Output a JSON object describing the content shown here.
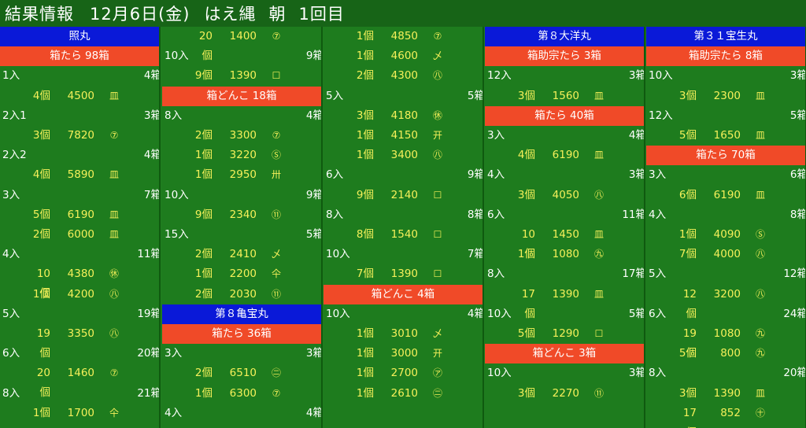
{
  "title": {
    "label": "結果情報",
    "date": "12月6日(金)",
    "market": "はえ縄",
    "session": "朝",
    "round": "1回目"
  },
  "columns": [
    {
      "rows": [
        {
          "type": "boat",
          "text": "照丸"
        },
        {
          "type": "cargo",
          "text": "箱たら 98箱"
        },
        {
          "type": "lot",
          "lot": "1入",
          "boxes": "4箱"
        },
        {
          "type": "item",
          "count": "4個",
          "price": "4500",
          "mark": "皿"
        },
        {
          "type": "lot",
          "lot": "2入1",
          "boxes": "3箱"
        },
        {
          "type": "item",
          "count": "3個",
          "price": "7820",
          "mark": "⑦"
        },
        {
          "type": "lot",
          "lot": "2入2",
          "boxes": "4箱"
        },
        {
          "type": "item",
          "count": "4個",
          "price": "5890",
          "mark": "皿"
        },
        {
          "type": "lot",
          "lot": "3入",
          "boxes": "7箱"
        },
        {
          "type": "item",
          "count": "5個",
          "price": "6190",
          "mark": "皿"
        },
        {
          "type": "item",
          "count": "2個",
          "price": "6000",
          "mark": "皿"
        },
        {
          "type": "lot",
          "lot": "4入",
          "boxes": "11箱"
        },
        {
          "type": "item",
          "count": "10個",
          "price": "4380",
          "mark": "㊡"
        },
        {
          "type": "item",
          "count": "1個",
          "price": "4200",
          "mark": "㊇"
        },
        {
          "type": "lot",
          "lot": "5入",
          "boxes": "19箱"
        },
        {
          "type": "item",
          "count": "19個",
          "price": "3350",
          "mark": "㊇"
        },
        {
          "type": "lot",
          "lot": "6入",
          "boxes": "20箱"
        },
        {
          "type": "item",
          "count": "20個",
          "price": "1460",
          "mark": "⑦"
        },
        {
          "type": "lot",
          "lot": "8入",
          "boxes": "21箱"
        },
        {
          "type": "item",
          "count": "1個",
          "price": "1700",
          "mark": "仐"
        }
      ]
    },
    {
      "rows": [
        {
          "type": "item",
          "count": "20個",
          "price": "1400",
          "mark": "⑦"
        },
        {
          "type": "lot",
          "lot": "10入",
          "boxes": "9箱"
        },
        {
          "type": "item",
          "count": "9個",
          "price": "1390",
          "mark": "☐"
        },
        {
          "type": "cargo",
          "text": "箱どんこ 18箱"
        },
        {
          "type": "lot",
          "lot": "8入",
          "boxes": "4箱"
        },
        {
          "type": "item",
          "count": "2個",
          "price": "3300",
          "mark": "⑦"
        },
        {
          "type": "item",
          "count": "1個",
          "price": "3220",
          "mark": "Ⓢ"
        },
        {
          "type": "item",
          "count": "1個",
          "price": "2950",
          "mark": "卅"
        },
        {
          "type": "lot",
          "lot": "10入",
          "boxes": "9箱"
        },
        {
          "type": "item",
          "count": "9個",
          "price": "2340",
          "mark": "⑪"
        },
        {
          "type": "lot",
          "lot": "15入",
          "boxes": "5箱"
        },
        {
          "type": "item",
          "count": "2個",
          "price": "2410",
          "mark": "乄"
        },
        {
          "type": "item",
          "count": "1個",
          "price": "2200",
          "mark": "仐"
        },
        {
          "type": "item",
          "count": "2個",
          "price": "2030",
          "mark": "⑪"
        },
        {
          "type": "boat",
          "text": "第８亀宝丸"
        },
        {
          "type": "cargo",
          "text": "箱たら 36箱"
        },
        {
          "type": "lot",
          "lot": "3入",
          "boxes": "3箱"
        },
        {
          "type": "item",
          "count": "2個",
          "price": "6510",
          "mark": "㊁"
        },
        {
          "type": "item",
          "count": "1個",
          "price": "6300",
          "mark": "⑦"
        },
        {
          "type": "lot",
          "lot": "4入",
          "boxes": "4箱"
        }
      ]
    },
    {
      "rows": [
        {
          "type": "item",
          "count": "1個",
          "price": "4850",
          "mark": "⑦"
        },
        {
          "type": "item",
          "count": "1個",
          "price": "4600",
          "mark": "乄"
        },
        {
          "type": "item",
          "count": "2個",
          "price": "4300",
          "mark": "㊇"
        },
        {
          "type": "lot",
          "lot": "5入",
          "boxes": "5箱"
        },
        {
          "type": "item",
          "count": "3個",
          "price": "4180",
          "mark": "㊡"
        },
        {
          "type": "item",
          "count": "1個",
          "price": "4150",
          "mark": "开"
        },
        {
          "type": "item",
          "count": "1個",
          "price": "3400",
          "mark": "㊇"
        },
        {
          "type": "lot",
          "lot": "6入",
          "boxes": "9箱"
        },
        {
          "type": "item",
          "count": "9個",
          "price": "2140",
          "mark": "☐"
        },
        {
          "type": "lot",
          "lot": "8入",
          "boxes": "8箱"
        },
        {
          "type": "item",
          "count": "8個",
          "price": "1540",
          "mark": "☐"
        },
        {
          "type": "lot",
          "lot": "10入",
          "boxes": "7箱"
        },
        {
          "type": "item",
          "count": "7個",
          "price": "1390",
          "mark": "☐"
        },
        {
          "type": "cargo",
          "text": "箱どんこ 4箱"
        },
        {
          "type": "lot",
          "lot": "10入",
          "boxes": "4箱"
        },
        {
          "type": "item",
          "count": "1個",
          "price": "3010",
          "mark": "乄"
        },
        {
          "type": "item",
          "count": "1個",
          "price": "3000",
          "mark": "开"
        },
        {
          "type": "item",
          "count": "1個",
          "price": "2700",
          "mark": "㋐"
        },
        {
          "type": "item",
          "count": "1個",
          "price": "2610",
          "mark": "㊁"
        }
      ]
    },
    {
      "rows": [
        {
          "type": "boat",
          "text": "第８大洋丸"
        },
        {
          "type": "cargo",
          "text": "箱助宗たら 3箱"
        },
        {
          "type": "lot",
          "lot": "12入",
          "boxes": "3箱"
        },
        {
          "type": "item",
          "count": "3個",
          "price": "1560",
          "mark": "皿"
        },
        {
          "type": "cargo",
          "text": "箱たら 40箱"
        },
        {
          "type": "lot",
          "lot": "3入",
          "boxes": "4箱"
        },
        {
          "type": "item",
          "count": "4個",
          "price": "6190",
          "mark": "皿"
        },
        {
          "type": "lot",
          "lot": "4入",
          "boxes": "3箱"
        },
        {
          "type": "item",
          "count": "3個",
          "price": "4050",
          "mark": "㊇"
        },
        {
          "type": "lot",
          "lot": "6入",
          "boxes": "11箱"
        },
        {
          "type": "item",
          "count": "10個",
          "price": "1450",
          "mark": "皿"
        },
        {
          "type": "item",
          "count": "1個",
          "price": "1080",
          "mark": "㊈"
        },
        {
          "type": "lot",
          "lot": "8入",
          "boxes": "17箱"
        },
        {
          "type": "item",
          "count": "17個",
          "price": "1390",
          "mark": "皿"
        },
        {
          "type": "lot",
          "lot": "10入",
          "boxes": "5箱"
        },
        {
          "type": "item",
          "count": "5個",
          "price": "1290",
          "mark": "☐"
        },
        {
          "type": "cargo",
          "text": "箱どんこ 3箱"
        },
        {
          "type": "lot",
          "lot": "10入",
          "boxes": "3箱"
        },
        {
          "type": "item",
          "count": "3個",
          "price": "2270",
          "mark": "⑪"
        }
      ]
    },
    {
      "rows": [
        {
          "type": "boat",
          "text": "第３１宝生丸"
        },
        {
          "type": "cargo",
          "text": "箱助宗たら 8箱"
        },
        {
          "type": "lot",
          "lot": "10入",
          "boxes": "3箱"
        },
        {
          "type": "item",
          "count": "3個",
          "price": "2300",
          "mark": "皿"
        },
        {
          "type": "lot",
          "lot": "12入",
          "boxes": "5箱"
        },
        {
          "type": "item",
          "count": "5個",
          "price": "1650",
          "mark": "皿"
        },
        {
          "type": "cargo",
          "text": "箱たら 70箱"
        },
        {
          "type": "lot",
          "lot": "3入",
          "boxes": "6箱"
        },
        {
          "type": "item",
          "count": "6個",
          "price": "6190",
          "mark": "皿"
        },
        {
          "type": "lot",
          "lot": "4入",
          "boxes": "8箱"
        },
        {
          "type": "item",
          "count": "1個",
          "price": "4090",
          "mark": "Ⓢ"
        },
        {
          "type": "item",
          "count": "7個",
          "price": "4000",
          "mark": "㊇"
        },
        {
          "type": "lot",
          "lot": "5入",
          "boxes": "12箱"
        },
        {
          "type": "item",
          "count": "12個",
          "price": "3200",
          "mark": "㊇"
        },
        {
          "type": "lot",
          "lot": "6入",
          "boxes": "24箱"
        },
        {
          "type": "item",
          "count": "19個",
          "price": "1080",
          "mark": "㊈"
        },
        {
          "type": "item",
          "count": "5個",
          "price": "800",
          "mark": "㊈"
        },
        {
          "type": "lot",
          "lot": "8入",
          "boxes": "20箱"
        },
        {
          "type": "item",
          "count": "3個",
          "price": "1390",
          "mark": "皿"
        },
        {
          "type": "item",
          "count": "17個",
          "price": "852",
          "mark": "㊉"
        }
      ]
    }
  ]
}
